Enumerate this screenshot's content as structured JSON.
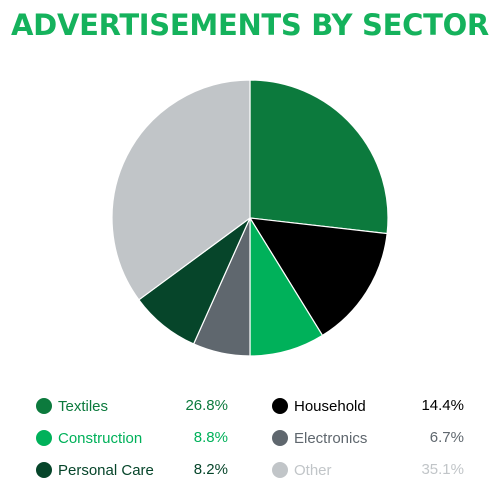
{
  "chart_data": {
    "type": "pie",
    "title": "ADVERTISEMENTS BY SECTOR",
    "start_angle_deg": 0,
    "direction": "clockwise",
    "slices": [
      {
        "label": "Textiles",
        "value": 26.8,
        "display": "26.8%",
        "color": "#0c7a3d",
        "label_color": "#0c7a3d",
        "value_color": "#0c7a3d"
      },
      {
        "label": "Household",
        "value": 14.4,
        "display": "14.4%",
        "color": "#000000",
        "label_color": "#000000",
        "value_color": "#000000"
      },
      {
        "label": "Construction",
        "value": 8.8,
        "display": "8.8%",
        "color": "#00b15a",
        "label_color": "#00b15a",
        "value_color": "#00b15a"
      },
      {
        "label": "Electronics",
        "value": 6.7,
        "display": "6.7%",
        "color": "#5f676e",
        "label_color": "#5f676e",
        "value_color": "#5f676e"
      },
      {
        "label": "Personal Care",
        "value": 8.2,
        "display": "8.2%",
        "color": "#06452a",
        "label_color": "#06452a",
        "value_color": "#06452a"
      },
      {
        "label": "Other",
        "value": 35.1,
        "display": "35.1%",
        "color": "#c1c5c8",
        "label_color": "#c1c5c8",
        "value_color": "#c1c5c8"
      }
    ],
    "legend_position": "bottom"
  }
}
